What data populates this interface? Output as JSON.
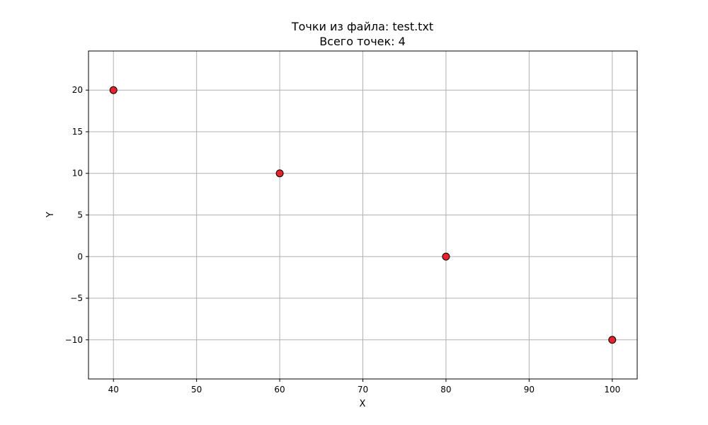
{
  "chart_data": {
    "type": "scatter",
    "title": "Точки из файла: test.txt",
    "subtitle": "Всего точек: 4",
    "xlabel": "X",
    "ylabel": "Y",
    "xlim": [
      37,
      103
    ],
    "ylim": [
      -14.7,
      24.7
    ],
    "xticks": [
      40,
      50,
      60,
      70,
      80,
      90,
      100
    ],
    "yticks": [
      -10,
      -5,
      0,
      5,
      10,
      15,
      20
    ],
    "xtick_labels": [
      "40",
      "50",
      "60",
      "70",
      "80",
      "90",
      "100"
    ],
    "ytick_labels": [
      "−10",
      "−5",
      "0",
      "5",
      "10",
      "15",
      "20"
    ],
    "grid": true,
    "legend": "none",
    "marker_color": "#e6222a",
    "marker_edge_color": "#000000",
    "grid_color": "#b0b0b0",
    "series": [
      {
        "x": [
          40,
          60,
          80,
          100
        ],
        "y": [
          20,
          10,
          0,
          -10
        ]
      }
    ]
  }
}
